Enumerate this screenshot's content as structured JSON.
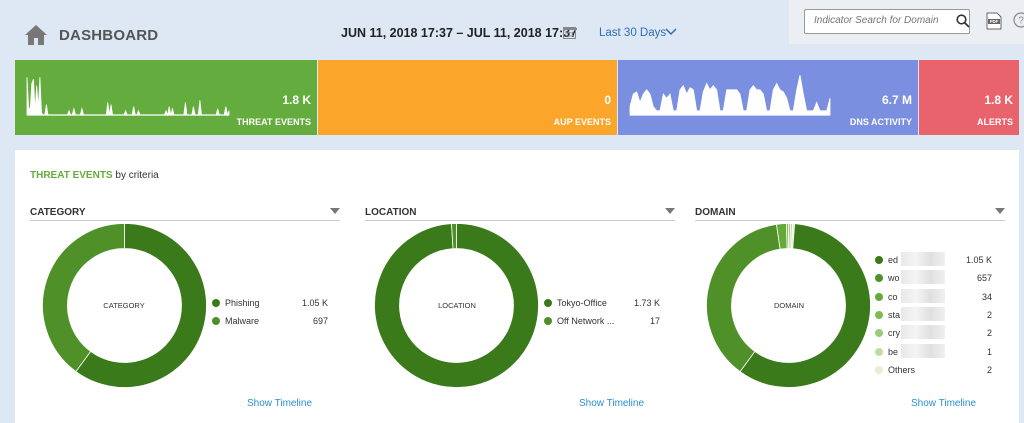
{
  "header": {
    "title": "DASHBOARD",
    "date_range": "JUN 11, 2018 17:37 – JUL 11, 2018 17:37",
    "period": "Last 30 Days",
    "search_placeholder": "Indicator Search for Domain"
  },
  "tiles": [
    {
      "id": "threat",
      "value": "1.8 K",
      "label": "THREAT EVENTS",
      "color": "#64ac3d"
    },
    {
      "id": "aup",
      "value": "0",
      "label": "AUP EVENTS",
      "color": "#fba52a"
    },
    {
      "id": "dns",
      "value": "6.7 M",
      "label": "DNS ACTIVITY",
      "color": "#7b8fe0"
    },
    {
      "id": "alerts",
      "value": "1.8 K",
      "label": "ALERTS",
      "color": "#e9636d"
    }
  ],
  "panel": {
    "title_highlight": "THREAT EVENTS",
    "title_rest": " by criteria"
  },
  "sections": [
    {
      "title": "CATEGORY",
      "center_label": "CATEGORY",
      "timeline_label": "Show Timeline",
      "items": [
        {
          "name": "Phishing",
          "value": "1.05 K",
          "amount": 1050,
          "color": "#3a7a1a"
        },
        {
          "name": "Malware",
          "value": "697",
          "amount": 697,
          "color": "#4f9128"
        }
      ]
    },
    {
      "title": "LOCATION",
      "center_label": "LOCATION",
      "timeline_label": "Show Timeline",
      "items": [
        {
          "name": "Tokyo-Office",
          "value": "1.73 K",
          "amount": 1730,
          "color": "#3a7a1a"
        },
        {
          "name": "Off Network ...",
          "value": "17",
          "amount": 17,
          "color": "#4f9128"
        }
      ]
    },
    {
      "title": "DOMAIN",
      "center_label": "DOMAIN",
      "timeline_label": "Show Timeline",
      "items": [
        {
          "name": "ed",
          "value": "1.05 K",
          "amount": 1050,
          "color": "#3a7a1a"
        },
        {
          "name": "wo",
          "value": "657",
          "amount": 657,
          "color": "#4f9128"
        },
        {
          "name": "co",
          "value": "34",
          "amount": 34,
          "color": "#66a83a"
        },
        {
          "name": "sta",
          "value": "2",
          "amount": 2,
          "color": "#7fbb52"
        },
        {
          "name": "cry",
          "value": "2",
          "amount": 2,
          "color": "#9ccb78"
        },
        {
          "name": "be",
          "value": "1",
          "amount": 1,
          "color": "#bfdca6"
        },
        {
          "name": "Others",
          "value": "2",
          "amount": 2,
          "color": "#e4f0d6"
        }
      ]
    }
  ],
  "sparklines": {
    "threat": [
      0.9,
      0.2,
      0.1,
      0.75,
      0.85,
      0.1,
      0.7,
      0.15,
      0.9,
      0.05,
      0,
      0,
      0.25,
      0,
      0,
      0,
      0,
      0,
      0,
      0,
      0,
      0,
      0,
      0,
      0,
      0,
      0.1,
      0,
      0,
      0.15,
      0,
      0,
      0,
      0,
      0.15,
      0,
      0,
      0,
      0,
      0,
      0,
      0,
      0,
      0,
      0,
      0,
      0,
      0,
      0,
      0,
      0.3,
      0,
      0.25,
      0,
      0,
      0,
      0,
      0,
      0,
      0,
      0,
      0.1,
      0,
      0,
      0,
      0,
      0.2,
      0,
      0,
      0.1,
      0,
      0,
      0,
      0,
      0,
      0,
      0,
      0,
      0,
      0,
      0,
      0,
      0,
      0,
      0,
      0,
      0.1,
      0,
      0.2,
      0,
      0.15,
      0,
      0,
      0,
      0,
      0,
      0,
      0,
      0.3,
      0,
      0,
      0,
      0,
      0.2,
      0,
      0,
      0,
      0.35,
      0,
      0,
      0,
      0,
      0,
      0,
      0,
      0,
      0,
      0,
      0.15,
      0,
      0,
      0,
      0,
      0.2,
      0,
      0.1
    ],
    "dns": [
      0.2,
      0.5,
      0.55,
      0.3,
      0.5,
      0.6,
      0.5,
      0.2,
      0.1,
      0.1,
      0.5,
      0.4,
      0.5,
      0.1,
      0.1,
      0.6,
      0.7,
      0.5,
      0.65,
      0.6,
      0.1,
      0.1,
      0.55,
      0.75,
      0.6,
      0.7,
      0.6,
      0.1,
      0.1,
      0.6,
      0.6,
      0.6,
      0.6,
      0.5,
      0.1,
      0.1,
      0.6,
      0.7,
      0.6,
      0.6,
      0.5,
      0.1,
      0.1,
      0.6,
      0.75,
      0.6,
      0.55,
      0.4,
      0.1,
      0.1,
      0.6,
      0.95,
      0.5,
      0.1,
      0.1,
      0.1,
      0.3,
      0.1,
      0.1,
      0.1,
      0.4
    ]
  }
}
